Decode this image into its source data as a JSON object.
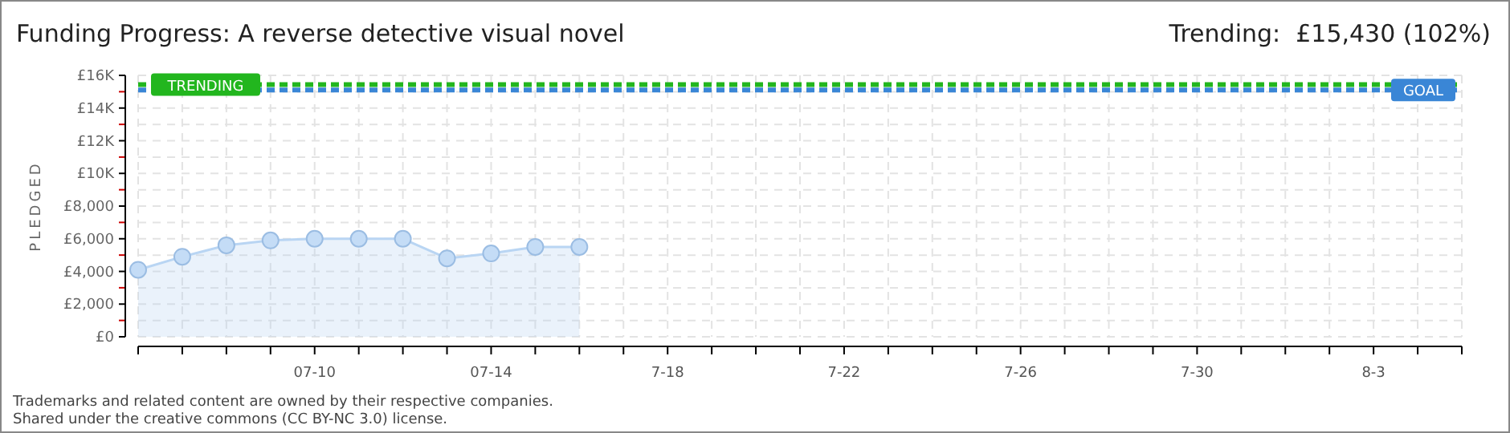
{
  "chart_data": {
    "type": "area",
    "title": "Funding Progress: A reverse detective visual novel",
    "subtitle": "Trending:  £15,430 (102%)",
    "ylabel": "PLEDGED",
    "x": [
      "--07-06",
      "--07-07",
      "--07-08",
      "--07-09",
      "--07-10",
      "--07-11",
      "--07-12",
      "--07-13",
      "--07-14",
      "--07-15",
      "--07-16"
    ],
    "series": [
      {
        "color": "#b9d5f3",
        "values": [
          4100,
          4900,
          5600,
          5900,
          6000,
          6000,
          6000,
          4800,
          5100,
          5500,
          5500
        ]
      }
    ],
    "xlim": [
      "--07-06",
      "--08-05"
    ],
    "xticks": [
      {
        "value": "--07-06",
        "label": null
      },
      {
        "value": "--07-07",
        "label": null
      },
      {
        "value": "--07-08",
        "label": null
      },
      {
        "value": "--07-09",
        "label": null
      },
      {
        "value": "--07-10",
        "label": "07-10"
      },
      {
        "value": "--07-11",
        "label": null
      },
      {
        "value": "--07-12",
        "label": null
      },
      {
        "value": "--07-13",
        "label": null
      },
      {
        "value": "--07-14",
        "label": "07-14"
      },
      {
        "value": "--07-15",
        "label": null
      },
      {
        "value": "--07-16",
        "label": null
      },
      {
        "value": "--07-17",
        "label": null
      },
      {
        "value": "--07-18",
        "label": "7-18"
      },
      {
        "value": "--07-19",
        "label": null
      },
      {
        "value": "--07-20",
        "label": null
      },
      {
        "value": "--07-21",
        "label": null
      },
      {
        "value": "--07-22",
        "label": "7-22"
      },
      {
        "value": "--07-23",
        "label": null
      },
      {
        "value": "--07-24",
        "label": null
      },
      {
        "value": "--07-25",
        "label": null
      },
      {
        "value": "--07-26",
        "label": "7-26"
      },
      {
        "value": "--07-27",
        "label": null
      },
      {
        "value": "--07-28",
        "label": null
      },
      {
        "value": "--07-29",
        "label": null
      },
      {
        "value": "--07-30",
        "label": "7-30"
      },
      {
        "value": "--07-31",
        "label": null
      },
      {
        "value": "--08-01",
        "label": null
      },
      {
        "value": "--08-02",
        "label": null
      },
      {
        "value": "--08-03",
        "label": "8-3"
      },
      {
        "value": "--08-04",
        "label": null
      },
      {
        "value": "--08-05",
        "label": null
      }
    ],
    "ylim": [
      0,
      16000
    ],
    "yticks": [
      {
        "value": 0,
        "label": "£0"
      },
      {
        "value": 1000,
        "label": null
      },
      {
        "value": 2000,
        "label": "£2,000"
      },
      {
        "value": 3000,
        "label": null
      },
      {
        "value": 4000,
        "label": "£4,000"
      },
      {
        "value": 5000,
        "label": null
      },
      {
        "value": 6000,
        "label": "£6,000"
      },
      {
        "value": 7000,
        "label": null
      },
      {
        "value": 8000,
        "label": "£8,000"
      },
      {
        "value": 9000,
        "label": null
      },
      {
        "value": 10000,
        "label": "£10K"
      },
      {
        "value": 11000,
        "label": null
      },
      {
        "value": 12000,
        "label": "£12K"
      },
      {
        "value": 13000,
        "label": null
      },
      {
        "value": 14000,
        "label": "£14K"
      },
      {
        "value": 15000,
        "label": null
      },
      {
        "value": 16000,
        "label": "£16K"
      }
    ],
    "ref_lines": [
      {
        "axis": "y",
        "value": 15430,
        "label": "TRENDING",
        "color": "#22b61e",
        "line_style": "dashed"
      },
      {
        "axis": "y",
        "value": 15100,
        "label": "GOAL",
        "color": "#3a86d6",
        "line_style": "dashed"
      }
    ],
    "annotations": [
      "Trademarks and related content are owned by their respective companies.",
      "Shared under the creative commons (CC BY-NC 3.0) license."
    ],
    "grid": true,
    "marker": "circle",
    "line_style": "solid"
  }
}
